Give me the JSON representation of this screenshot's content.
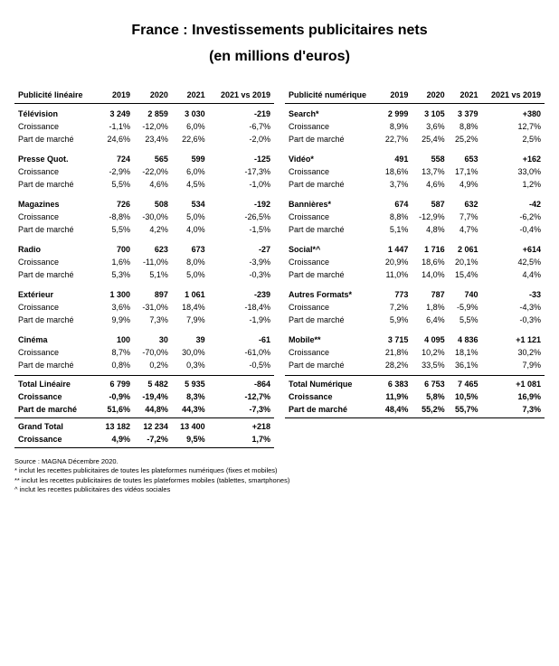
{
  "title_line1": "France : Investissements publicitaires nets",
  "title_line2": "(en millions d'euros)",
  "columns_left": [
    "Publicité linéaire",
    "2019",
    "2020",
    "2021",
    "2021 vs 2019"
  ],
  "columns_right": [
    "Publicité numérique",
    "2019",
    "2020",
    "2021",
    "2021 vs 2019"
  ],
  "row_labels": {
    "growth": "Croissance",
    "share": "Part de marché"
  },
  "left_sections": [
    {
      "name": "Télévision",
      "vals": [
        "3 249",
        "2 859",
        "3 030",
        "-219"
      ],
      "growth": [
        "-1,1%",
        "-12,0%",
        "6,0%",
        "-6,7%"
      ],
      "share": [
        "24,6%",
        "23,4%",
        "22,6%",
        "-2,0%"
      ]
    },
    {
      "name": "Presse Quot.",
      "vals": [
        "724",
        "565",
        "599",
        "-125"
      ],
      "growth": [
        "-2,9%",
        "-22,0%",
        "6,0%",
        "-17,3%"
      ],
      "share": [
        "5,5%",
        "4,6%",
        "4,5%",
        "-1,0%"
      ]
    },
    {
      "name": "Magazines",
      "vals": [
        "726",
        "508",
        "534",
        "-192"
      ],
      "growth": [
        "-8,8%",
        "-30,0%",
        "5,0%",
        "-26,5%"
      ],
      "share": [
        "5,5%",
        "4,2%",
        "4,0%",
        "-1,5%"
      ]
    },
    {
      "name": "Radio",
      "vals": [
        "700",
        "623",
        "673",
        "-27"
      ],
      "growth": [
        "1,6%",
        "-11,0%",
        "8,0%",
        "-3,9%"
      ],
      "share": [
        "5,3%",
        "5,1%",
        "5,0%",
        "-0,3%"
      ]
    },
    {
      "name": "Extérieur",
      "vals": [
        "1 300",
        "897",
        "1 061",
        "-239"
      ],
      "growth": [
        "3,6%",
        "-31,0%",
        "18,4%",
        "-18,4%"
      ],
      "share": [
        "9,9%",
        "7,3%",
        "7,9%",
        "-1,9%"
      ]
    },
    {
      "name": "Cinéma",
      "vals": [
        "100",
        "30",
        "39",
        "-61"
      ],
      "growth": [
        "8,7%",
        "-70,0%",
        "30,0%",
        "-61,0%"
      ],
      "share": [
        "0,8%",
        "0,2%",
        "0,3%",
        "-0,5%"
      ]
    }
  ],
  "left_total": {
    "name": "Total Linéaire",
    "vals": [
      "6 799",
      "5 482",
      "5 935",
      "-864"
    ],
    "growth": [
      "-0,9%",
      "-19,4%",
      "8,3%",
      "-12,7%"
    ],
    "share": [
      "51,6%",
      "44,8%",
      "44,3%",
      "-7,3%"
    ]
  },
  "grand_total": {
    "name": "Grand Total",
    "vals": [
      "13 182",
      "12 234",
      "13 400",
      "+218"
    ],
    "growth": [
      "4,9%",
      "-7,2%",
      "9,5%",
      "1,7%"
    ]
  },
  "right_sections": [
    {
      "name": "Search*",
      "vals": [
        "2 999",
        "3 105",
        "3 379",
        "+380"
      ],
      "growth": [
        "8,9%",
        "3,6%",
        "8,8%",
        "12,7%"
      ],
      "share": [
        "22,7%",
        "25,4%",
        "25,2%",
        "2,5%"
      ]
    },
    {
      "name": "Vidéo*",
      "vals": [
        "491",
        "558",
        "653",
        "+162"
      ],
      "growth": [
        "18,6%",
        "13,7%",
        "17,1%",
        "33,0%"
      ],
      "share": [
        "3,7%",
        "4,6%",
        "4,9%",
        "1,2%"
      ]
    },
    {
      "name": "Bannières*",
      "vals": [
        "674",
        "587",
        "632",
        "-42"
      ],
      "growth": [
        "8,8%",
        "-12,9%",
        "7,7%",
        "-6,2%"
      ],
      "share": [
        "5,1%",
        "4,8%",
        "4,7%",
        "-0,4%"
      ]
    },
    {
      "name": "Social*^",
      "vals": [
        "1 447",
        "1 716",
        "2 061",
        "+614"
      ],
      "growth": [
        "20,9%",
        "18,6%",
        "20,1%",
        "42,5%"
      ],
      "share": [
        "11,0%",
        "14,0%",
        "15,4%",
        "4,4%"
      ]
    },
    {
      "name": "Autres Formats*",
      "vals": [
        "773",
        "787",
        "740",
        "-33"
      ],
      "growth": [
        "7,2%",
        "1,8%",
        "-5,9%",
        "-4,3%"
      ],
      "share": [
        "5,9%",
        "6,4%",
        "5,5%",
        "-0,3%"
      ]
    },
    {
      "name": "Mobile**",
      "vals": [
        "3 715",
        "4 095",
        "4 836",
        "+1 121"
      ],
      "growth": [
        "21,8%",
        "10,2%",
        "18,1%",
        "30,2%"
      ],
      "share": [
        "28,2%",
        "33,5%",
        "36,1%",
        "7,9%"
      ]
    }
  ],
  "right_total": {
    "name": "Total Numérique",
    "vals": [
      "6 383",
      "6 753",
      "7 465",
      "+1 081"
    ],
    "growth": [
      "11,9%",
      "5,8%",
      "10,5%",
      "16,9%"
    ],
    "share": [
      "48,4%",
      "55,2%",
      "55,7%",
      "7,3%"
    ]
  },
  "footnotes": [
    "Source : MAGNA Décembre 2020.",
    "* inclut les recettes publicitaires de toutes les plateformes numériques (fixes et mobiles)",
    "** inclut les recettes publicitaires de toutes les plateformes mobiles (tablettes, smartphones)",
    "^ inclut les recettes publicitaires des vidéos sociales"
  ]
}
